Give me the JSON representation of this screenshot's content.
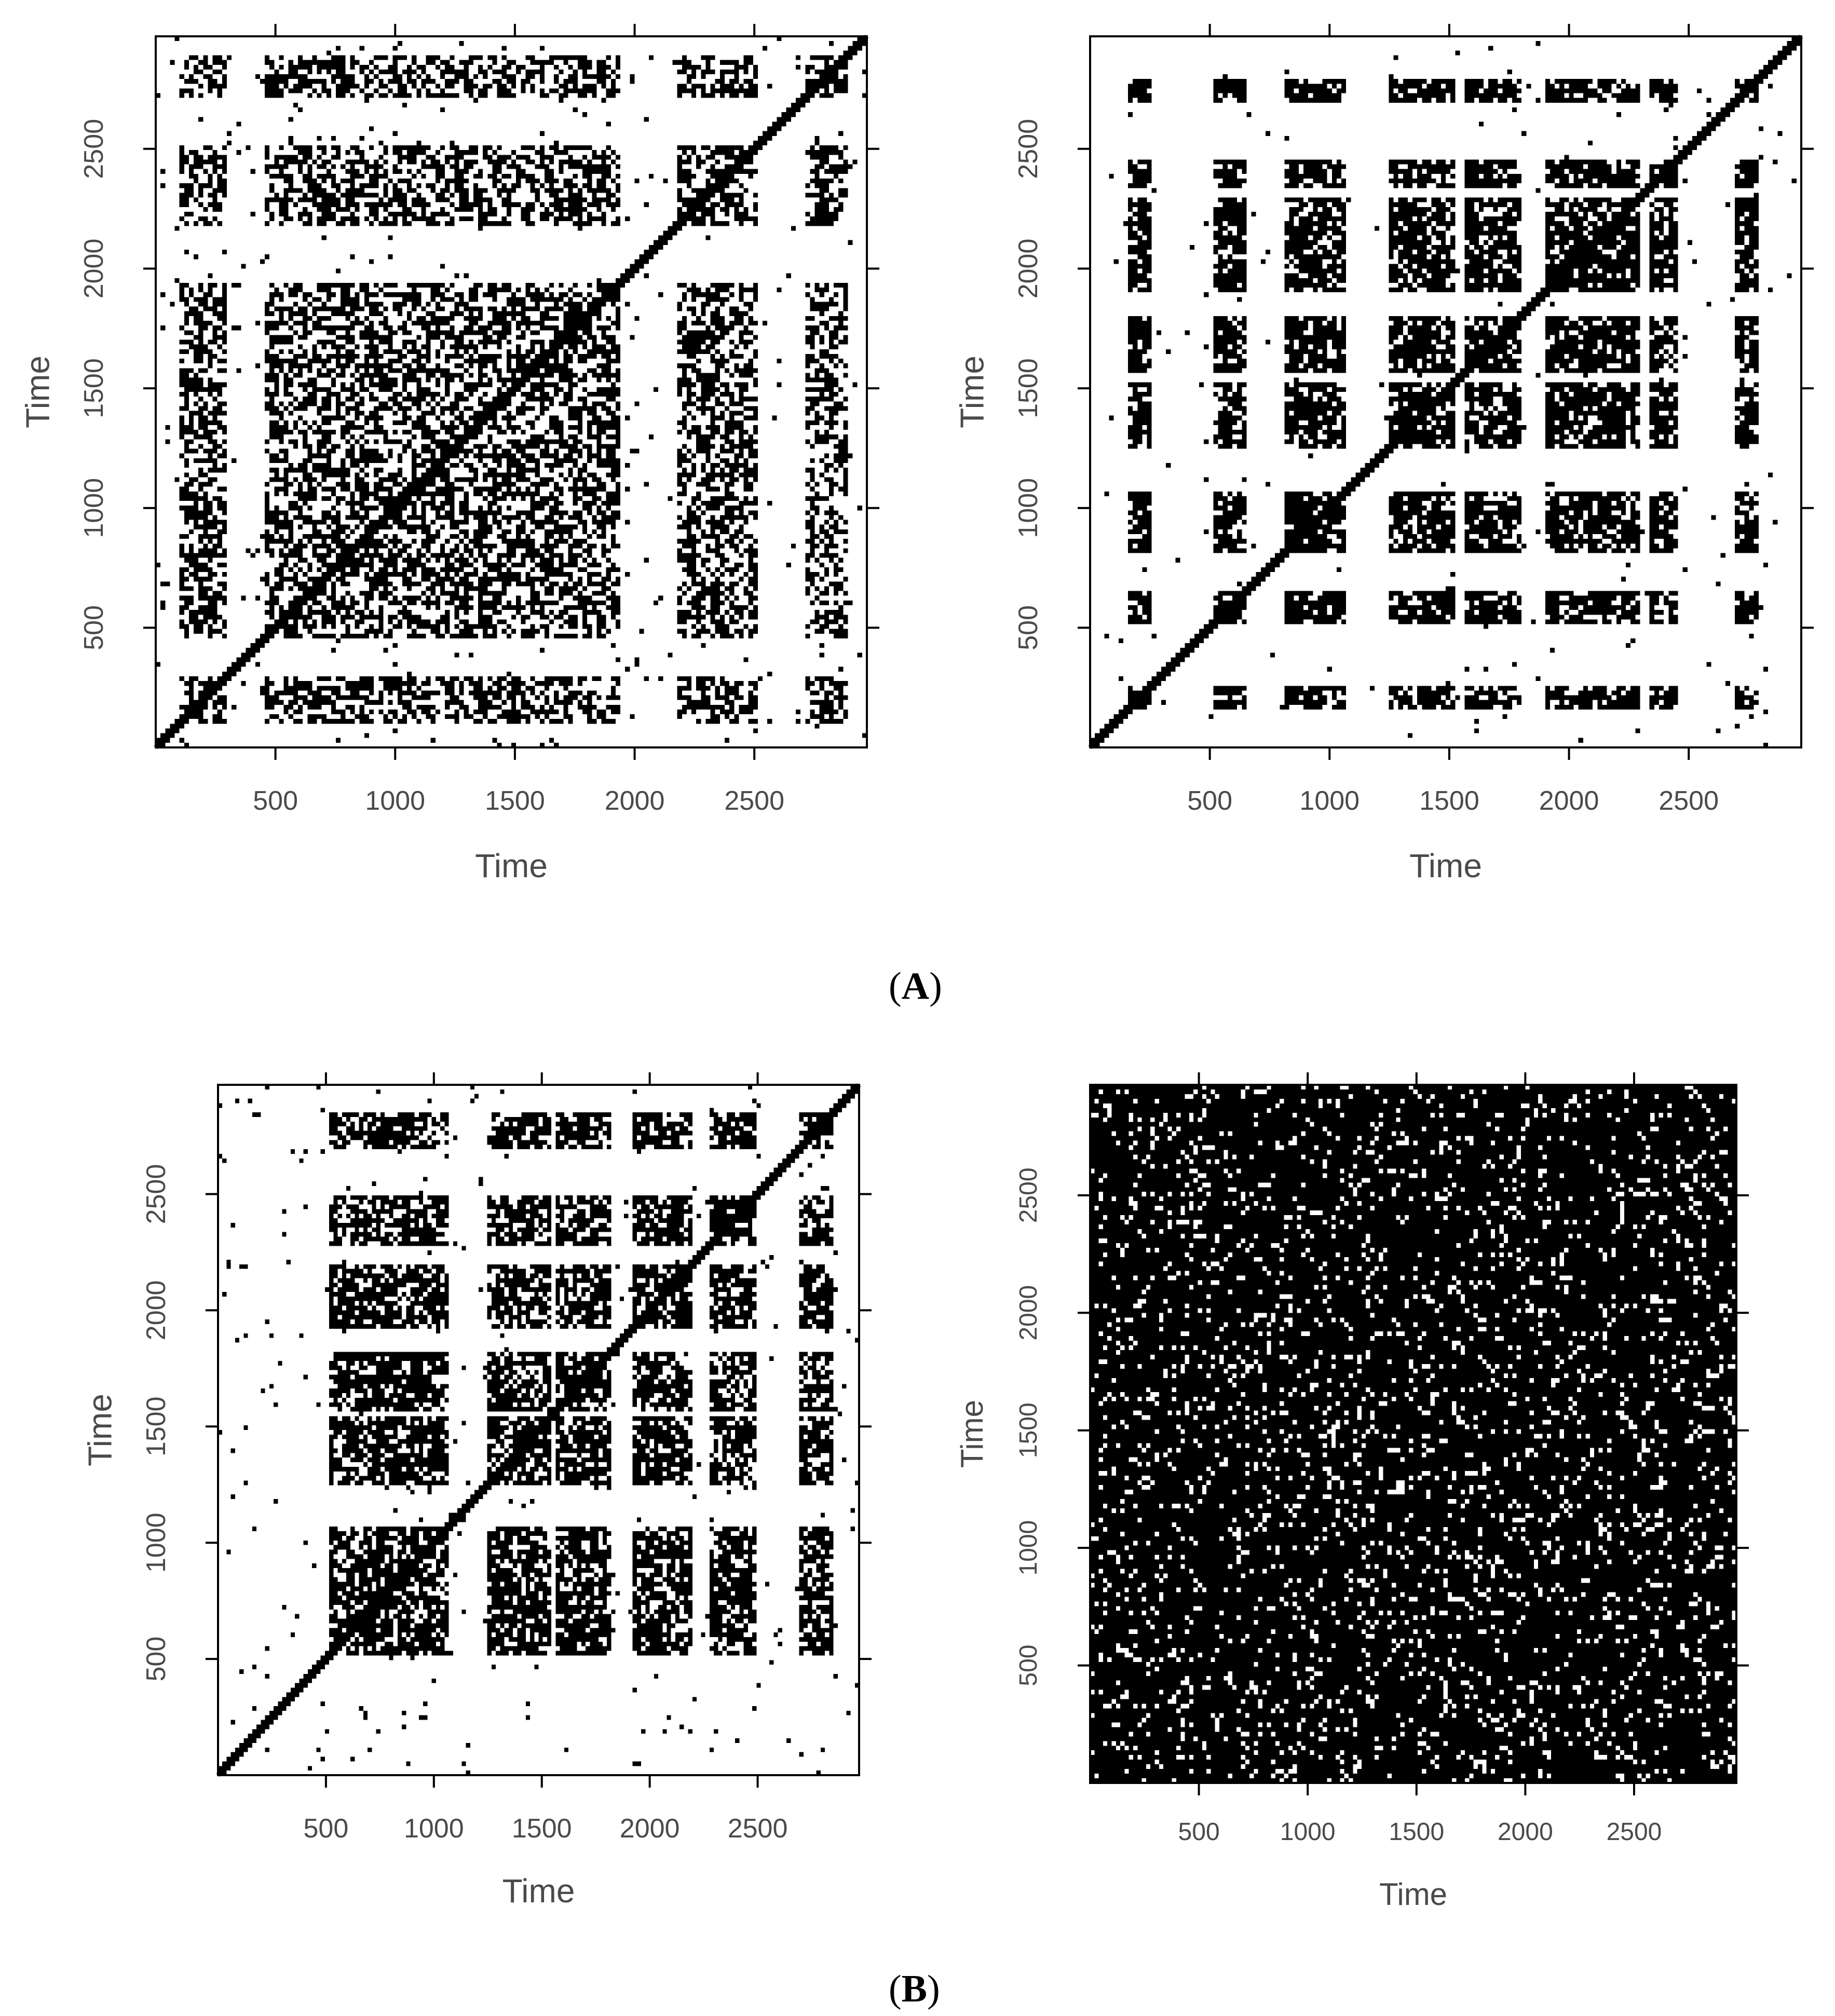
{
  "figure": {
    "captions": [
      {
        "open": "(",
        "letter": "A",
        "close": ")"
      },
      {
        "open": "(",
        "letter": "B",
        "close": ")"
      }
    ]
  },
  "chart_data": [
    {
      "type": "heatmap",
      "subtype": "recurrence plot",
      "panel": "A",
      "position": "left",
      "xlabel": "Time",
      "ylabel": "Time",
      "xlim": [
        0,
        2970
      ],
      "ylim": [
        0,
        2970
      ],
      "xticks": [
        500,
        1000,
        1500,
        2000,
        2500
      ],
      "yticks": [
        500,
        1000,
        1500,
        2000,
        2500
      ],
      "diagonal": true,
      "bands": [
        [
          90,
          300
        ],
        [
          460,
          1080
        ],
        [
          1080,
          1460
        ],
        [
          1460,
          1750
        ],
        [
          1750,
          1950
        ],
        [
          2170,
          2520
        ],
        [
          2720,
          2900
        ]
      ],
      "band_density": 0.55,
      "background_density": 0.02,
      "inverted": false
    },
    {
      "type": "heatmap",
      "subtype": "recurrence plot",
      "panel": "A",
      "position": "right",
      "xlabel": "Time",
      "ylabel": "Time",
      "xlim": [
        0,
        2970
      ],
      "ylim": [
        0,
        2970
      ],
      "xticks": [
        500,
        1000,
        1500,
        2000,
        2500
      ],
      "yticks": [
        500,
        1000,
        1500,
        2000,
        2500
      ],
      "diagonal": true,
      "bands": [
        [
          150,
          250
        ],
        [
          520,
          650
        ],
        [
          820,
          1060
        ],
        [
          1240,
          1520
        ],
        [
          1560,
          1800
        ],
        [
          1900,
          2300
        ],
        [
          2340,
          2450
        ],
        [
          2700,
          2800
        ]
      ],
      "band_density": 0.78,
      "background_density": 0.01,
      "inverted": false
    },
    {
      "type": "heatmap",
      "subtype": "recurrence plot",
      "panel": "B",
      "position": "left",
      "xlabel": "Time",
      "ylabel": "Time",
      "xlim": [
        0,
        2970
      ],
      "ylim": [
        0,
        2970
      ],
      "xticks": [
        500,
        1000,
        1500,
        2000,
        2500
      ],
      "yticks": [
        500,
        1000,
        1500,
        2000,
        2500
      ],
      "diagonal": true,
      "bands": [
        [
          520,
          1060
        ],
        [
          1240,
          1540
        ],
        [
          1560,
          1830
        ],
        [
          1930,
          2200
        ],
        [
          2280,
          2500
        ],
        [
          2700,
          2850
        ]
      ],
      "band_density": 0.72,
      "background_density": 0.015,
      "inverted": false
    },
    {
      "type": "heatmap",
      "subtype": "recurrence plot",
      "panel": "B",
      "position": "right",
      "xlabel": "Time",
      "ylabel": "Time",
      "xlim": [
        0,
        2970
      ],
      "ylim": [
        0,
        2970
      ],
      "xticks": [
        500,
        1000,
        1500,
        2000,
        2500
      ],
      "yticks": [
        500,
        1000,
        1500,
        2000,
        2500
      ],
      "diagonal": false,
      "bands": [],
      "band_density": 0,
      "background_density": 0.88,
      "inverted": true
    }
  ]
}
